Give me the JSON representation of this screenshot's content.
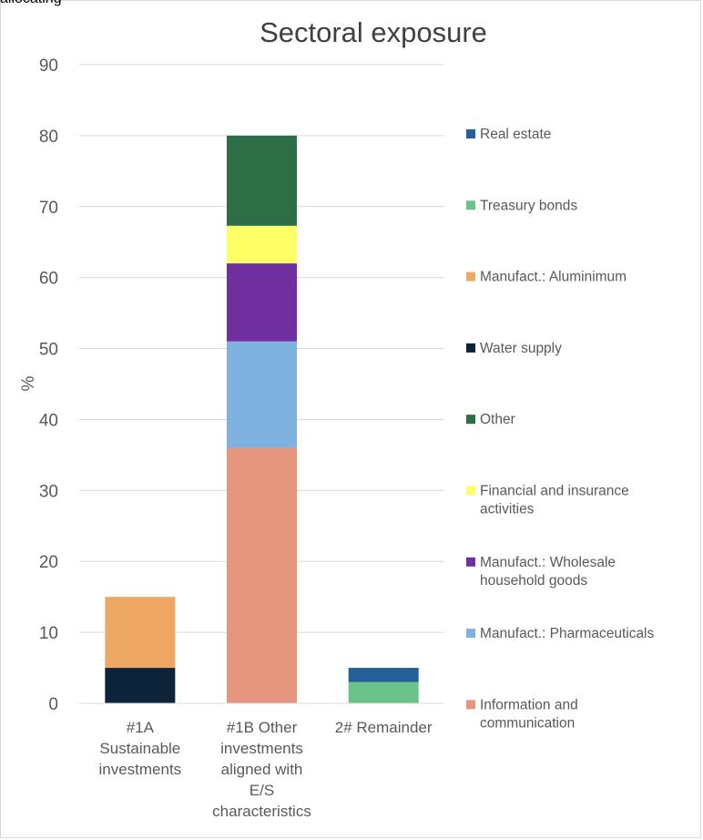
{
  "caption": "allocating",
  "chart_data": {
    "type": "bar",
    "stacked": true,
    "title": "Sectoral exposure",
    "xlabel": "",
    "ylabel": "%",
    "ylim": [
      0,
      90
    ],
    "yticks": [
      0,
      10,
      20,
      30,
      40,
      50,
      60,
      70,
      80,
      90
    ],
    "grid": true,
    "legend_position": "right",
    "categories": [
      [
        "#1A",
        "Sustainable",
        "investments"
      ],
      [
        "#1B Other",
        "investments",
        "aligned with",
        "E/S",
        "characteristics"
      ],
      [
        "2# Remainder"
      ]
    ],
    "series": [
      {
        "name": [
          "Information and",
          "communication"
        ],
        "color": "#e6957f",
        "values": [
          0,
          36,
          0
        ]
      },
      {
        "name": [
          "Manufact.: Pharmaceuticals"
        ],
        "color": "#7fb2e0",
        "values": [
          0,
          15,
          0
        ]
      },
      {
        "name": [
          "Manufact.: Wholesale",
          "household goods"
        ],
        "color": "#7030a0",
        "values": [
          0,
          11,
          0
        ]
      },
      {
        "name": [
          "Financial and insurance",
          "activities"
        ],
        "color": "#ffff66",
        "values": [
          0,
          5.3,
          0
        ]
      },
      {
        "name": [
          "Other"
        ],
        "color": "#2d6e47",
        "values": [
          0,
          12.7,
          0
        ]
      },
      {
        "name": [
          "Water supply"
        ],
        "color": "#0c233a",
        "values": [
          5,
          0,
          0
        ]
      },
      {
        "name": [
          "Manufact.: Aluminimum"
        ],
        "color": "#eea864",
        "values": [
          10,
          0,
          0
        ]
      },
      {
        "name": [
          "Treasury bonds"
        ],
        "color": "#6bc38c",
        "values": [
          0,
          0,
          3
        ]
      },
      {
        "name": [
          "Real estate"
        ],
        "color": "#255f9a",
        "values": [
          0,
          0,
          2
        ]
      }
    ]
  }
}
